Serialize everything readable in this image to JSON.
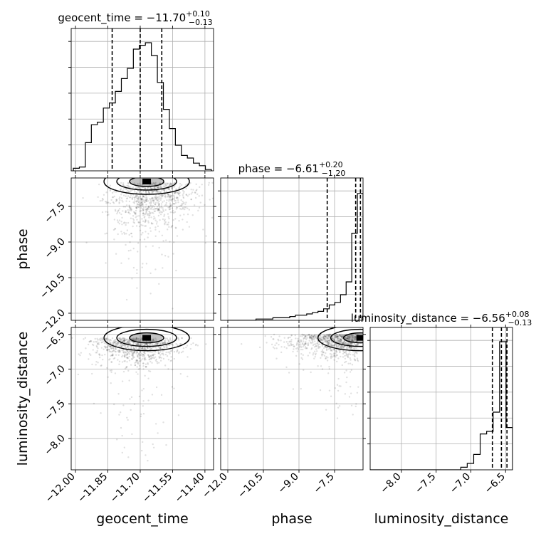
{
  "chart_data": {
    "type": "corner",
    "params": [
      "geocent_time",
      "phase",
      "luminosity_distance"
    ],
    "axis_labels": [
      "geocent_time",
      "phase",
      "luminosity_distance"
    ],
    "titles": [
      {
        "name": "geocent_time",
        "value": "−11.70",
        "plus": "+0.10",
        "minus": "−0.13"
      },
      {
        "name": "phase",
        "value": "−6.61",
        "plus": "+0.20",
        "minus": "−1.20"
      },
      {
        "name": "luminosity_distance",
        "value": "−6.56",
        "plus": "+0.08",
        "minus": "−0.13"
      }
    ],
    "ranges": [
      [
        -12.02,
        -11.36
      ],
      [
        -12.3,
        -6.3
      ],
      [
        -8.45,
        -6.4
      ]
    ],
    "ticks": {
      "geocent_time": {
        "values": [
          -12.0,
          -11.85,
          -11.7,
          -11.55,
          -11.4
        ],
        "labels": [
          "−12.00",
          "−11.85",
          "−11.70",
          "−11.55",
          "−11.40"
        ]
      },
      "phase": {
        "values": [
          -12.0,
          -10.5,
          -9.0,
          -7.5
        ],
        "labels": [
          "−12.0",
          "−10.5",
          "−9.0",
          "−7.5"
        ]
      },
      "luminosity_distance": {
        "values": [
          -8.0,
          -7.5,
          -7.0,
          -6.5
        ],
        "labels": [
          "−8.0",
          "−7.5",
          "−7.0",
          "−6.5"
        ]
      }
    },
    "quantiles": {
      "geocent_time": [
        -11.83,
        -11.7,
        -11.6
      ],
      "phase": [
        -7.81,
        -6.61,
        -6.41
      ],
      "luminosity_distance": [
        -6.69,
        -6.56,
        -6.48
      ]
    },
    "histograms": [
      {
        "param": "geocent_time",
        "edges_range": [
          -12.01,
          -11.37
        ],
        "counts": [
          0.02,
          0.03,
          0.22,
          0.36,
          0.38,
          0.49,
          0.53,
          0.62,
          0.72,
          0.8,
          0.95,
          0.98,
          1.0,
          0.9,
          0.69,
          0.48,
          0.33,
          0.2,
          0.12,
          0.1,
          0.06,
          0.04,
          0.01
        ]
      },
      {
        "param": "phase",
        "edges_range": [
          -12.0,
          -6.3
        ],
        "counts": [
          0.0,
          0.0,
          0.0,
          0.0,
          0.0,
          0.01,
          0.01,
          0.01,
          0.02,
          0.02,
          0.02,
          0.03,
          0.04,
          0.04,
          0.05,
          0.06,
          0.07,
          0.09,
          0.12,
          0.14,
          0.2,
          0.3,
          0.68,
          0.99
        ]
      },
      {
        "param": "luminosity_distance",
        "edges_range": [
          -8.45,
          -6.4
        ],
        "counts": [
          0.0,
          0.0,
          0.0,
          0.0,
          0.0,
          0.0,
          0.0,
          0.0,
          0.0,
          0.0,
          0.0,
          0.0,
          0.0,
          0.0,
          0.02,
          0.05,
          0.12,
          0.28,
          0.3,
          0.45,
          1.0,
          0.33
        ]
      }
    ],
    "grid": true
  }
}
